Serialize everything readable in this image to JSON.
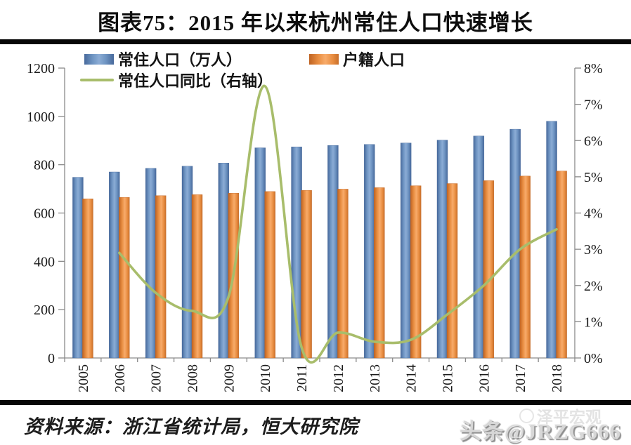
{
  "header": {
    "title": "图表75：2015 年以来杭州常住人口快速增长"
  },
  "legend": {
    "items": [
      {
        "label": "常住人口（万人）",
        "swatch": "blue-bar"
      },
      {
        "label": "户籍人口",
        "swatch": "orange-bar"
      },
      {
        "label": "常住人口同比（右轴）",
        "swatch": "green-line"
      }
    ]
  },
  "chart_data": {
    "type": "bar",
    "subtype": "combo-bar-line",
    "categories": [
      "2005",
      "2006",
      "2007",
      "2008",
      "2009",
      "2010",
      "2011",
      "2012",
      "2013",
      "2014",
      "2015",
      "2016",
      "2017",
      "2018"
    ],
    "series": [
      {
        "name": "常住人口（万人）",
        "type": "bar",
        "axis": "left",
        "color": "#6f95c3",
        "values": [
          748,
          770,
          785,
          794,
          807,
          870,
          874,
          880,
          884,
          890,
          902,
          919,
          947,
          980
        ]
      },
      {
        "name": "户籍人口",
        "type": "bar",
        "axis": "left",
        "color": "#e88d41",
        "values": [
          659,
          665,
          672,
          676,
          682,
          689,
          694,
          699,
          705,
          713,
          722,
          734,
          753,
          774
        ]
      },
      {
        "name": "常住人口同比（右轴）",
        "type": "line",
        "axis": "right",
        "color": "#a8bd6b",
        "values": [
          null,
          2.9,
          1.8,
          1.3,
          1.7,
          7.5,
          0.3,
          0.7,
          0.45,
          0.5,
          1.2,
          2.0,
          3.0,
          3.55
        ]
      }
    ],
    "left_axis": {
      "min": 0,
      "max": 1200,
      "step": 200,
      "tick_labels": [
        "0",
        "200",
        "400",
        "600",
        "800",
        "1000",
        "1200"
      ]
    },
    "right_axis": {
      "min": 0,
      "max": 8,
      "step": 1,
      "tick_labels": [
        "0%",
        "1%",
        "2%",
        "3%",
        "4%",
        "5%",
        "6%",
        "7%",
        "8%"
      ]
    },
    "grid": false,
    "legend_position": "top-left"
  },
  "footer": {
    "source": "资料来源：浙江省统计局，恒大研究院",
    "watermark": "头条@JRZG666",
    "watermark_faint": "泽平宏观"
  },
  "colors": {
    "bar_blue": "#6f95c3",
    "bar_blue_edge": "#47699b",
    "bar_orange": "#e88d41",
    "bar_orange_edge": "#bf6322",
    "line_green": "#a8bd6b",
    "axis_gray": "#8a8a8a",
    "divider_black": "#070707",
    "watermark_gray": "#d7d7d7"
  }
}
